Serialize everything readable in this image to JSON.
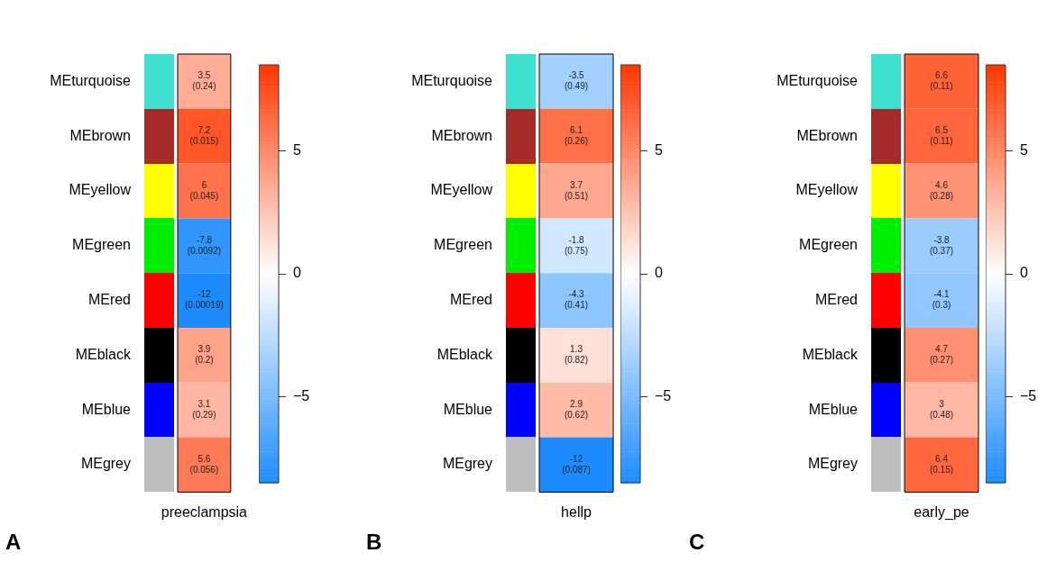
{
  "chart_data": [
    {
      "type": "heatmap",
      "categories": [
        "preeclampsia"
      ],
      "y_categories": [
        "MEturquoise",
        "MEbrown",
        "MEyellow",
        "MEgreen",
        "MEred",
        "MEblack",
        "MEblue",
        "MEgrey"
      ],
      "cells": [
        [
          3.5
        ],
        [
          7.2
        ],
        [
          6
        ],
        [
          -7.8
        ],
        [
          -12
        ],
        [
          3.9
        ],
        [
          3.1
        ],
        [
          5.6
        ]
      ],
      "cell_labels": [
        [
          "3.5\n(0.24)"
        ],
        [
          "7.2\n(0.015)"
        ],
        [
          "6\n(0.045)"
        ],
        [
          "-7.8\n(0.0092)"
        ],
        [
          "-12\n(0.00019)"
        ],
        [
          "3.9\n(0.2)"
        ],
        [
          "3.1\n(0.29)"
        ],
        [
          "5.6\n(0.056)"
        ]
      ],
      "clim": [
        -8.5,
        8.5
      ],
      "cticks": [
        -5,
        0,
        5
      ],
      "annotations": [
        "A"
      ]
    },
    {
      "type": "heatmap",
      "categories": [
        "hellp"
      ],
      "y_categories": [
        "MEturquoise",
        "MEbrown",
        "MEyellow",
        "MEgreen",
        "MEred",
        "MEblack",
        "MEblue",
        "MEgrey"
      ],
      "cells": [
        [
          -3.5
        ],
        [
          6.1
        ],
        [
          3.7
        ],
        [
          -1.8
        ],
        [
          -4.3
        ],
        [
          1.3
        ],
        [
          2.9
        ],
        [
          -12
        ]
      ],
      "cell_labels": [
        [
          "-3.5\n(0.49)"
        ],
        [
          "6.1\n(0.26)"
        ],
        [
          "3.7\n(0.51)"
        ],
        [
          "-1.8\n(0.75)"
        ],
        [
          "-4.3\n(0.41)"
        ],
        [
          "1.3\n(0.82)"
        ],
        [
          "2.9\n(0.62)"
        ],
        [
          "-12\n(0.087)"
        ]
      ],
      "clim": [
        -8.5,
        8.5
      ],
      "cticks": [
        -5,
        0,
        5
      ],
      "annotations": [
        "B"
      ]
    },
    {
      "type": "heatmap",
      "categories": [
        "early_pe"
      ],
      "y_categories": [
        "MEturquoise",
        "MEbrown",
        "MEyellow",
        "MEgreen",
        "MEred",
        "MEblack",
        "MEblue",
        "MEgrey"
      ],
      "cells": [
        [
          6.6
        ],
        [
          6.5
        ],
        [
          4.6
        ],
        [
          -3.8
        ],
        [
          -4.1
        ],
        [
          4.7
        ],
        [
          3
        ],
        [
          6.4
        ]
      ],
      "cell_labels": [
        [
          "6.6\n(0.11)"
        ],
        [
          "6.5\n(0.11)"
        ],
        [
          "4.6\n(0.28)"
        ],
        [
          "-3.8\n(0.37)"
        ],
        [
          "-4.1\n(0.3)"
        ],
        [
          "4.7\n(0.27)"
        ],
        [
          "3\n(0.48)"
        ],
        [
          "6.4\n(0.15)"
        ]
      ],
      "clim": [
        -8.5,
        8.5
      ],
      "cticks": [
        -5,
        0,
        5
      ],
      "annotations": [
        "C"
      ]
    }
  ]
}
